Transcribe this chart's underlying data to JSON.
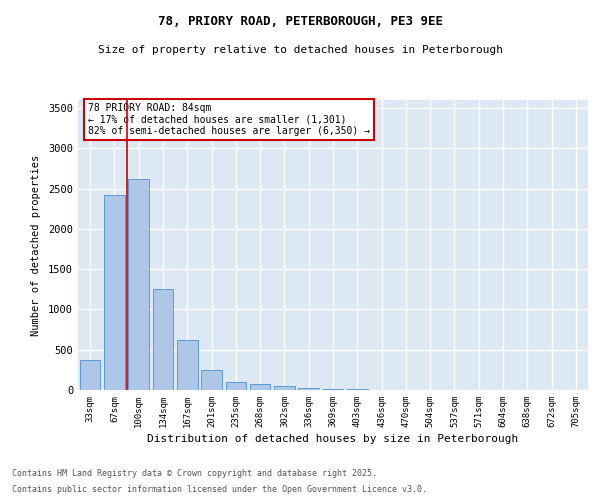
{
  "title1": "78, PRIORY ROAD, PETERBOROUGH, PE3 9EE",
  "title2": "Size of property relative to detached houses in Peterborough",
  "xlabel": "Distribution of detached houses by size in Peterborough",
  "ylabel": "Number of detached properties",
  "bar_color": "#aec6e8",
  "bar_edge_color": "#5b9bd5",
  "background_color": "#dde8f5",
  "grid_color": "#ffffff",
  "categories": [
    "33sqm",
    "67sqm",
    "100sqm",
    "134sqm",
    "167sqm",
    "201sqm",
    "235sqm",
    "268sqm",
    "302sqm",
    "336sqm",
    "369sqm",
    "403sqm",
    "436sqm",
    "470sqm",
    "504sqm",
    "537sqm",
    "571sqm",
    "604sqm",
    "638sqm",
    "672sqm",
    "705sqm"
  ],
  "bar_heights": [
    375,
    2420,
    2620,
    1250,
    625,
    250,
    100,
    75,
    50,
    25,
    15,
    8,
    5,
    5,
    3,
    3,
    2,
    2,
    1,
    1,
    1
  ],
  "ylim": [
    0,
    3600
  ],
  "yticks": [
    0,
    500,
    1000,
    1500,
    2000,
    2500,
    3000,
    3500
  ],
  "property_line_x": 1.51,
  "annotation_text": "78 PRIORY ROAD: 84sqm\n← 17% of detached houses are smaller (1,301)\n82% of semi-detached houses are larger (6,350) →",
  "annotation_box_color": "#cc0000",
  "footnote1": "Contains HM Land Registry data © Crown copyright and database right 2025.",
  "footnote2": "Contains public sector information licensed under the Open Government Licence v3.0."
}
